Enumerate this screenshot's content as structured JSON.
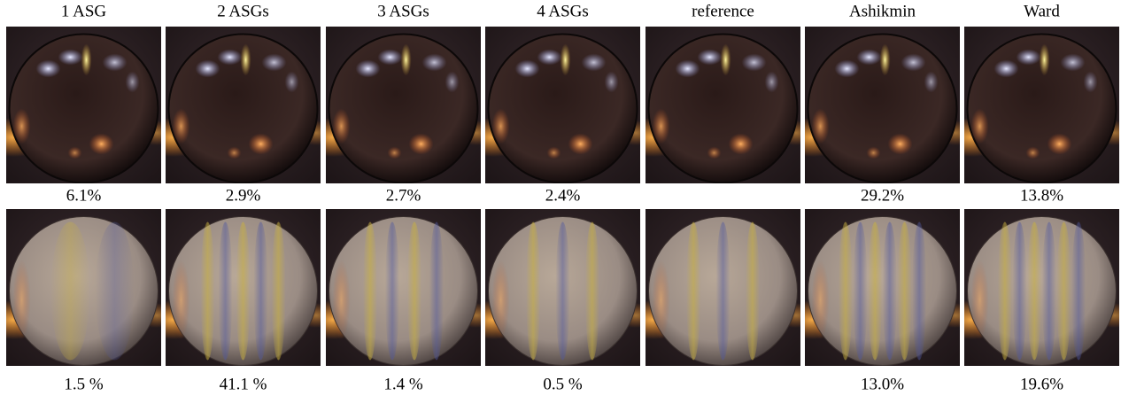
{
  "figure": {
    "columns": [
      "1 ASG",
      "2 ASGs",
      "3 ASGs",
      "4 ASGs",
      "reference",
      "Ashikmin",
      "Ward"
    ],
    "rows": [
      {
        "errors": [
          "6.1%",
          "2.9%",
          "2.7%",
          "2.4%",
          null,
          "29.2%",
          "13.8%"
        ]
      },
      {
        "errors": [
          "1.5 %",
          "41.1 %",
          "1.4 %",
          "0.5 %",
          null,
          "13.0%",
          "19.6%"
        ]
      }
    ]
  }
}
